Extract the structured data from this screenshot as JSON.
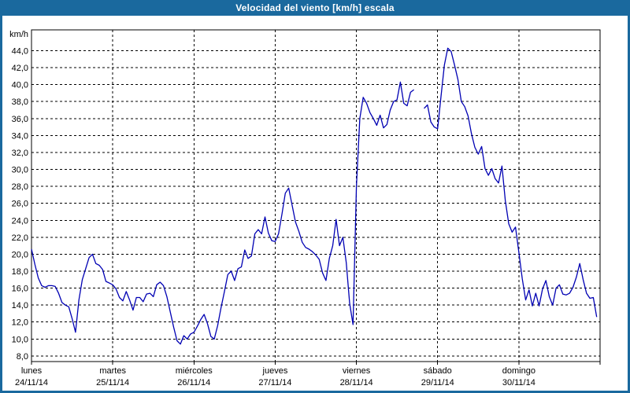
{
  "window": {
    "title": "Velocidad del viento [km/h] escala"
  },
  "colors": {
    "title_bar": "#1a699e",
    "frame_border": "#1a699e",
    "title_text": "#ffffff",
    "plot_background": "#ffffff",
    "plot_border": "#000000",
    "grid": "#000000",
    "series_line": "#0000b3",
    "tick_text": "#000000"
  },
  "chart_data": {
    "type": "line",
    "title": "Velocidad del viento [km/h] escala",
    "ylabel": "km/h",
    "ylim": [
      8,
      44
    ],
    "ytick_step": 2,
    "ytick_decimal_separator": ",",
    "grid": "dashed",
    "legend_position": "none",
    "x_unit": "hours",
    "hours_per_day": 24,
    "categories": [
      {
        "name": "lunes",
        "date": "24/11/14"
      },
      {
        "name": "martes",
        "date": "25/11/14"
      },
      {
        "name": "miércoles",
        "date": "26/11/14"
      },
      {
        "name": "jueves",
        "date": "27/11/14"
      },
      {
        "name": "viernes",
        "date": "28/11/14"
      },
      {
        "name": "sábado",
        "date": "29/11/14"
      },
      {
        "name": "domingo",
        "date": "30/11/14"
      }
    ],
    "series": [
      {
        "name": "Velocidad del viento",
        "values": [
          20.6,
          18.8,
          17.2,
          16.3,
          16.1,
          16.3,
          16.3,
          16.2,
          15.4,
          14.3,
          14.0,
          13.8,
          12.4,
          10.8,
          14.6,
          17.0,
          18.3,
          19.6,
          20.0,
          18.9,
          18.7,
          18.2,
          16.8,
          16.6,
          16.4,
          15.9,
          14.9,
          14.5,
          15.6,
          14.6,
          13.4,
          14.9,
          14.9,
          14.4,
          15.3,
          15.4,
          15.0,
          16.4,
          16.7,
          16.3,
          15.0,
          13.2,
          11.4,
          9.8,
          9.4,
          10.4,
          10.0,
          10.6,
          10.8,
          11.5,
          12.3,
          12.9,
          11.8,
          10.3,
          10.0,
          11.6,
          13.7,
          15.6,
          17.6,
          18.0,
          16.9,
          18.3,
          18.5,
          20.5,
          19.5,
          19.8,
          22.4,
          22.9,
          22.4,
          24.4,
          22.5,
          21.6,
          21.5,
          22.4,
          24.7,
          27.2,
          27.8,
          25.8,
          23.8,
          22.7,
          21.4,
          20.8,
          20.6,
          20.3,
          19.9,
          19.4,
          17.8,
          16.9,
          19.5,
          21.0,
          24.1,
          21.0,
          22.0,
          19.0,
          14.2,
          11.7,
          28.0,
          36.0,
          38.5,
          37.8,
          36.7,
          36.0,
          35.2,
          36.4,
          34.9,
          35.3,
          37.0,
          38.0,
          38.2,
          40.3,
          37.8,
          37.5,
          39.1,
          39.4,
          null,
          null,
          37.2,
          37.6,
          35.6,
          35.0,
          34.8,
          38.6,
          42.3,
          44.3,
          43.9,
          42.3,
          40.6,
          38.0,
          37.4,
          36.3,
          34.2,
          32.6,
          31.8,
          32.7,
          30.1,
          29.3,
          30.1,
          28.9,
          28.4,
          30.4,
          26.3,
          23.6,
          22.6,
          23.2,
          20.2,
          17.1,
          14.6,
          15.8,
          13.9,
          15.4,
          13.9,
          15.9,
          16.9,
          15.0,
          14.0,
          16.0,
          16.4,
          15.3,
          15.2,
          15.4,
          16.1,
          17.3,
          18.9,
          17.0,
          15.4,
          14.8,
          14.9,
          12.6
        ]
      }
    ]
  }
}
